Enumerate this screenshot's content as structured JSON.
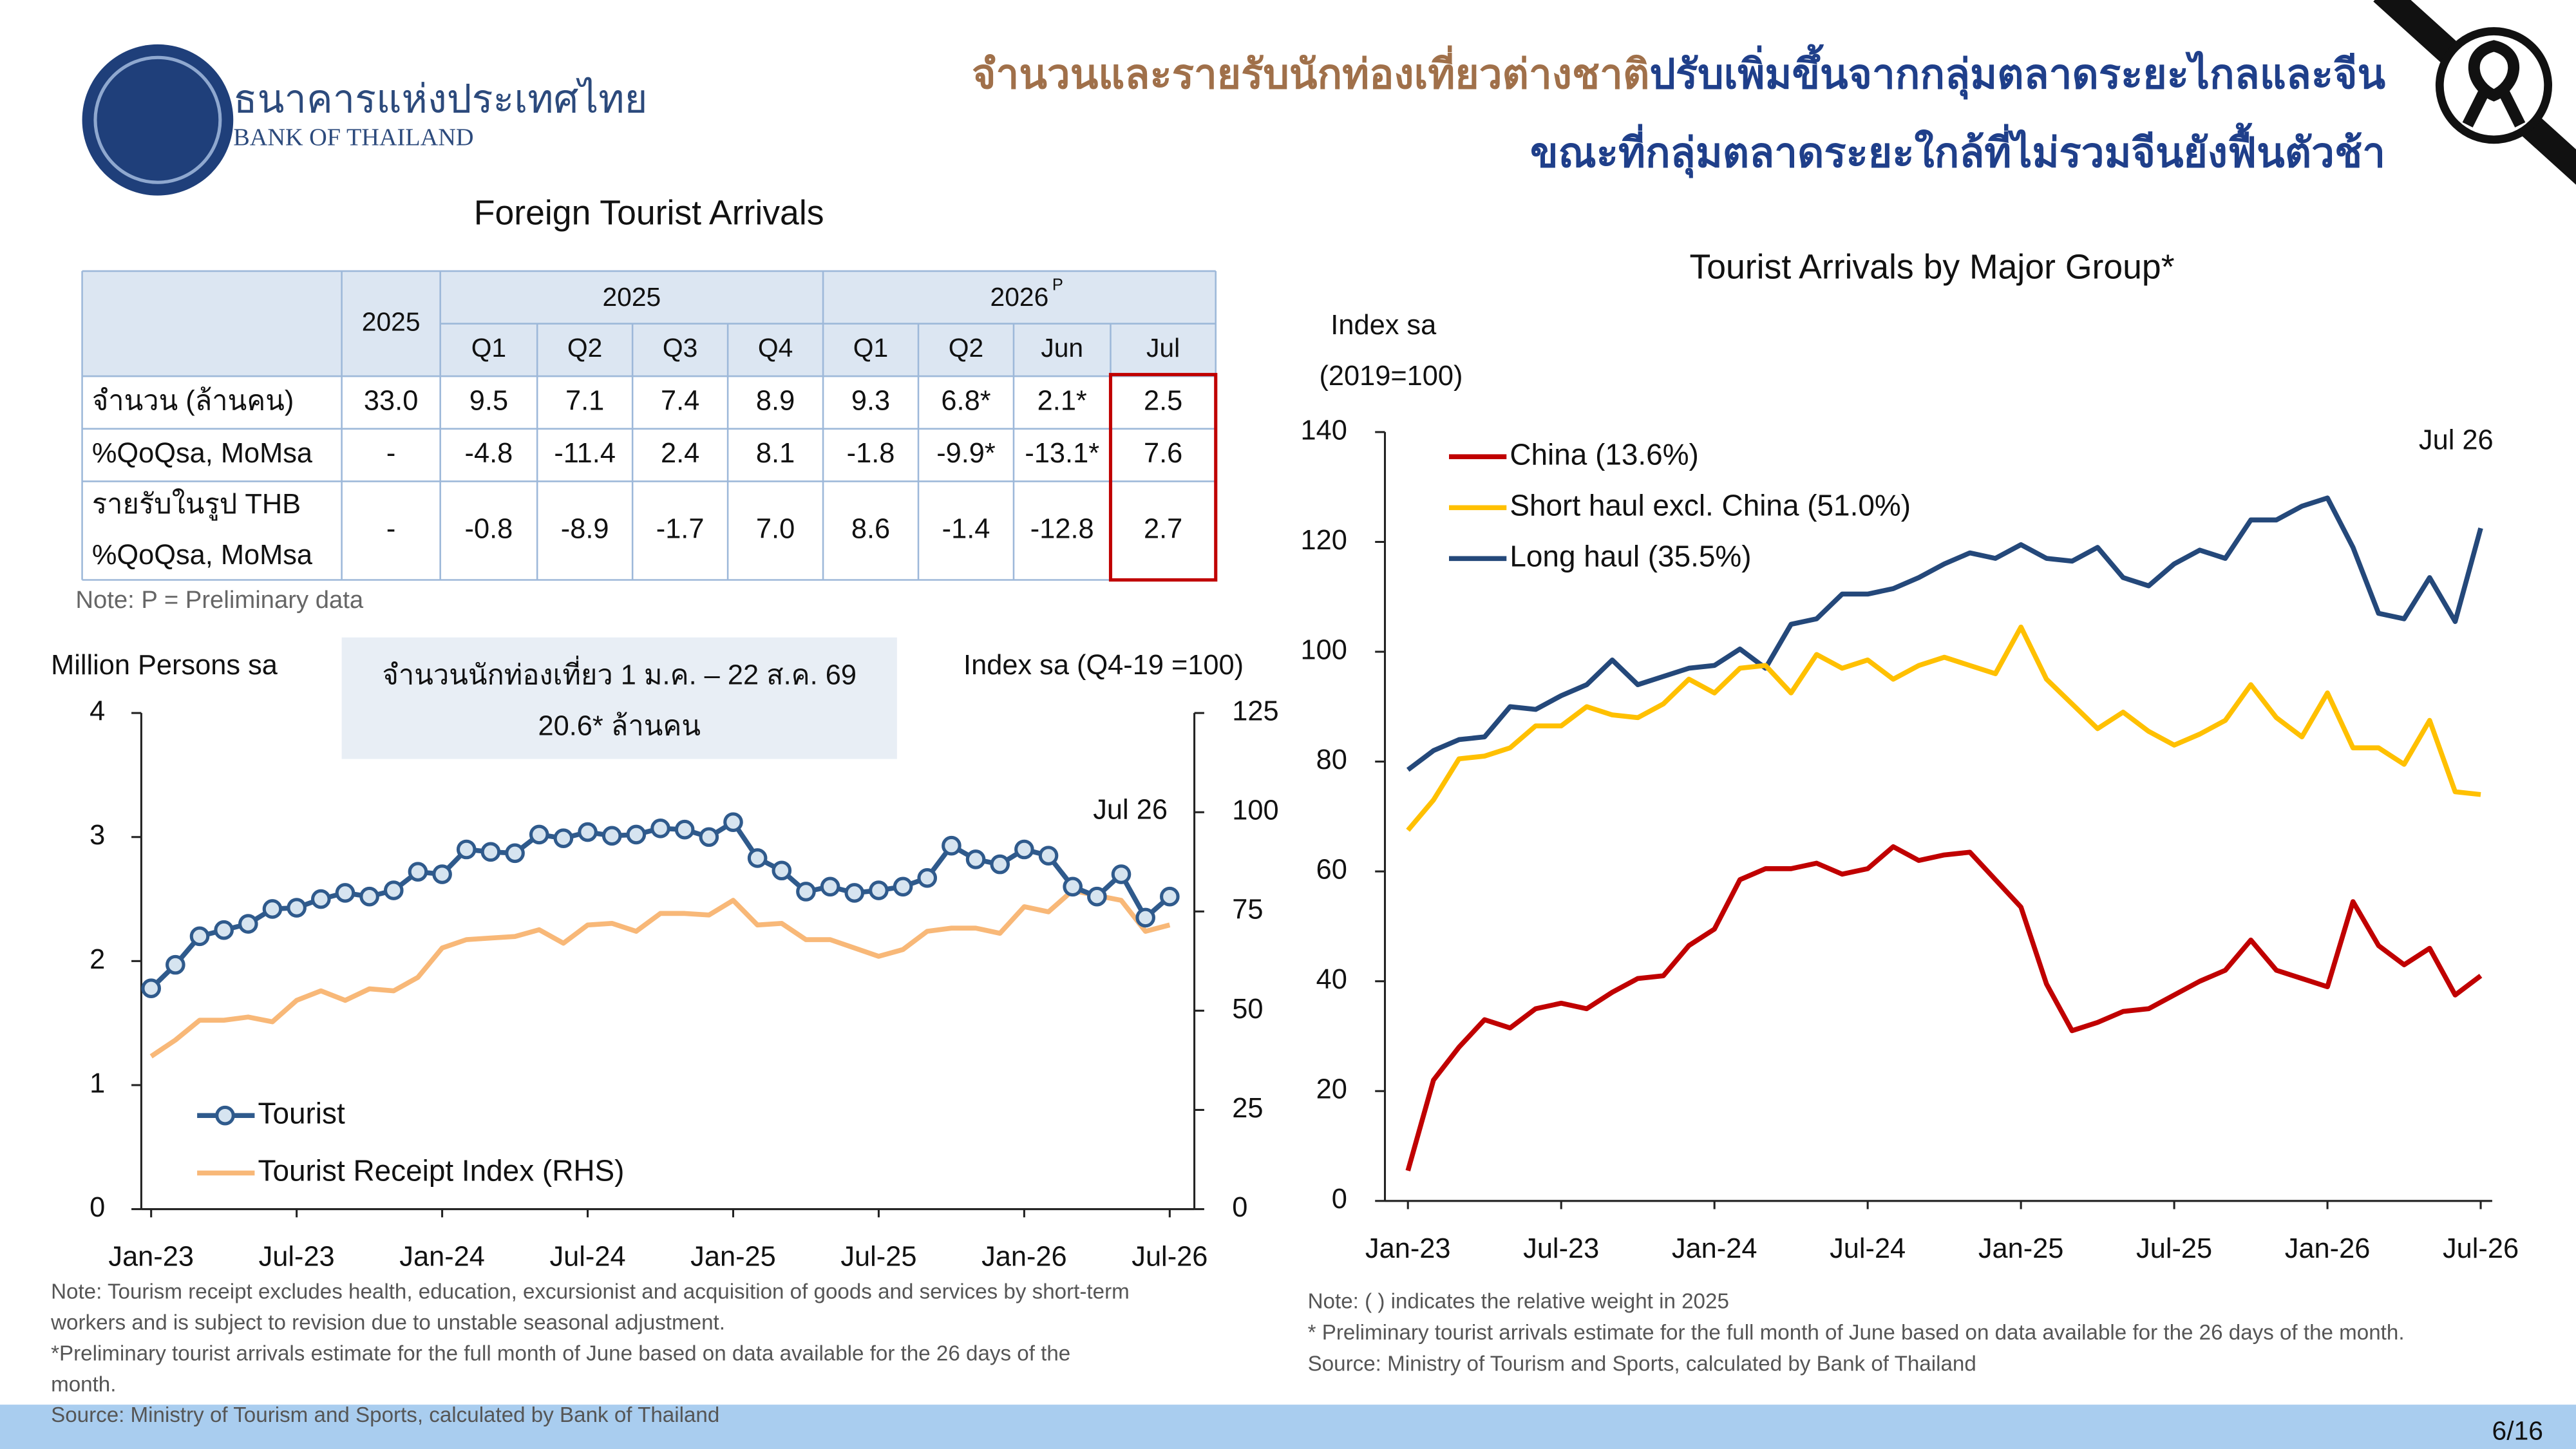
{
  "header": {
    "bank_name": "ธนาคารแห่งประเทศไทย",
    "bank_name_en": "BANK OF THAILAND",
    "title_part1": "จำนวนและรายรับนักท่องเที่ยวต่างชาติ",
    "title_part2": "ปรับเพิ่มขึ้นจากกลุ่มตลาดระยะไกลและจีน",
    "title_line2": "ขณะที่กลุ่มตลาดระยะใกล้ที่ไม่รวมจีนยังฟื้นตัวช้า"
  },
  "table": {
    "title": "Foreign Tourist Arrivals",
    "year_col": "2025",
    "groups": [
      {
        "label": "2025"
      },
      {
        "label": "2026",
        "sup": "P"
      }
    ],
    "columns": [
      "Q1",
      "Q2",
      "Q3",
      "Q4",
      "Q1",
      "Q2",
      "Jun",
      "Jul"
    ],
    "rows": [
      {
        "label": [
          "จำนวน (ล้านคน)"
        ],
        "cells": [
          "33.0",
          "9.5",
          "7.1",
          "7.4",
          "8.9",
          "9.3",
          "6.8*",
          "2.1*",
          "2.5"
        ]
      },
      {
        "label": [
          "%QoQsa, MoMsa"
        ],
        "cells": [
          "-",
          "-4.8",
          "-11.4",
          "2.4",
          "8.1",
          "-1.8",
          "-9.9*",
          "-13.1*",
          "7.6"
        ]
      },
      {
        "label": [
          "รายรับในรูป THB",
          "%QoQsa, MoMsa"
        ],
        "cells": [
          "-",
          "-0.8",
          "-8.9",
          "-1.7",
          "7.0",
          "8.6",
          "-1.4",
          "-12.8",
          "2.7"
        ]
      }
    ],
    "note": "Note: P = Preliminary data"
  },
  "chart_data": [
    {
      "type": "line",
      "y_label_lines": [
        "Million Persons sa"
      ],
      "y2_label": "Index sa (Q4-19 =100)",
      "callout": [
        "จำนวนนักท่องเที่ยว 1 ม.ค. – 22 ส.ค. 69",
        "20.6* ล้านคน"
      ],
      "annotation": "Jul 26",
      "categories": [
        "Jan-23",
        null,
        null,
        null,
        null,
        null,
        "Jul-23",
        null,
        null,
        null,
        null,
        null,
        "Jan-24",
        null,
        null,
        null,
        null,
        null,
        "Jul-24",
        null,
        null,
        null,
        null,
        null,
        "Jan-25",
        null,
        null,
        null,
        null,
        null,
        "Jul-25",
        null,
        null,
        null,
        null,
        null,
        "Jan-26",
        null,
        null,
        null,
        null,
        null,
        "Jul-26"
      ],
      "ylim": [
        0,
        4
      ],
      "yticks": [
        0,
        1,
        2,
        3,
        4
      ],
      "y2lim": [
        0,
        125
      ],
      "y2ticks": [
        0,
        25,
        50,
        75,
        100,
        125
      ],
      "grid": false,
      "series": [
        {
          "name": "Tourist",
          "color": "#2f5a8c",
          "markers": true,
          "values": [
            1.78,
            1.97,
            2.2,
            2.25,
            2.3,
            2.42,
            2.43,
            2.5,
            2.55,
            2.52,
            2.57,
            2.72,
            2.7,
            2.9,
            2.88,
            2.87,
            3.02,
            2.99,
            3.04,
            3.01,
            3.02,
            3.07,
            3.06,
            3.0,
            3.12,
            2.83,
            2.73,
            2.56,
            2.6,
            2.55,
            2.57,
            2.6,
            2.67,
            2.93,
            2.82,
            2.78,
            2.9,
            2.85,
            2.6,
            2.52,
            2.7,
            2.35,
            2.52
          ]
        },
        {
          "name": "Tourist Receipt Index (RHS)",
          "color": "#f8b878",
          "axis": "y2",
          "values": [
            38.5,
            42.6,
            47.6,
            47.6,
            48.4,
            47.2,
            52.6,
            55,
            52.6,
            55.5,
            55,
            58.4,
            65.8,
            67.9,
            68.3,
            68.7,
            70.4,
            67,
            71.6,
            72,
            70,
            74.5,
            74.5,
            74.1,
            77.8,
            71.6,
            72,
            67.9,
            67.9,
            65.8,
            63.7,
            65.4,
            70,
            70.8,
            70.8,
            69.5,
            76.2,
            74.9,
            80.3,
            79,
            77.8,
            70,
            71.6
          ]
        }
      ]
    },
    {
      "type": "line",
      "title": "Tourist Arrivals by Major Group*",
      "y_label_lines": [
        "Index sa",
        "(2019=100)"
      ],
      "annotation": "Jul 26",
      "categories": [
        "Jan-23",
        null,
        null,
        null,
        null,
        null,
        "Jul-23",
        null,
        null,
        null,
        null,
        null,
        "Jan-24",
        null,
        null,
        null,
        null,
        null,
        "Jul-24",
        null,
        null,
        null,
        null,
        null,
        "Jan-25",
        null,
        null,
        null,
        null,
        null,
        "Jul-25",
        null,
        null,
        null,
        null,
        null,
        "Jan-26",
        null,
        null,
        null,
        null,
        null,
        "Jul-26"
      ],
      "ylim": [
        0,
        140
      ],
      "yticks": [
        0,
        20,
        40,
        60,
        80,
        100,
        120,
        140
      ],
      "grid": false,
      "series": [
        {
          "name": "China (13.6%)",
          "color": "#c00000",
          "values": [
            5.5,
            22,
            28,
            33,
            31.5,
            35,
            36,
            35,
            38,
            40.5,
            41,
            46.5,
            49.5,
            58.5,
            60.5,
            60.5,
            61.5,
            59.5,
            60.5,
            64.5,
            62,
            63,
            63.5,
            58.5,
            53.5,
            39.5,
            31,
            32.5,
            34.5,
            35,
            37.5,
            40,
            42,
            47.5,
            42,
            40.5,
            39,
            54.5,
            46.5,
            43,
            46,
            37.5,
            41
          ]
        },
        {
          "name": "Short haul excl. China (51.0%)",
          "color": "#ffc000",
          "values": [
            67.5,
            73,
            80.5,
            81,
            82.5,
            86.5,
            86.5,
            90,
            88.5,
            88,
            90.5,
            95,
            92.5,
            97,
            97.5,
            92.5,
            99.5,
            97,
            98.5,
            95,
            97.5,
            99,
            97.5,
            96,
            104.5,
            95,
            90.5,
            86,
            89,
            85.5,
            83,
            85,
            87.5,
            94,
            88,
            84.5,
            92.5,
            82.5,
            82.5,
            79.5,
            87.5,
            74.5,
            74
          ]
        },
        {
          "name": "Long haul (35.5%)",
          "color": "#24487a",
          "values": [
            78.5,
            82,
            84,
            84.5,
            90,
            89.5,
            92,
            94,
            98.5,
            94,
            95.5,
            97,
            97.5,
            100.5,
            97,
            105,
            106,
            110.5,
            110.5,
            111.5,
            113.5,
            116,
            118,
            117,
            119.5,
            117,
            116.5,
            119,
            113.5,
            112,
            116,
            118.5,
            117,
            124,
            124,
            126.5,
            128,
            119,
            107,
            106,
            113.5,
            105.5,
            122.5
          ]
        }
      ]
    }
  ],
  "notes": {
    "left": [
      "Note: Tourism receipt excludes health, education, excursionist and acquisition of goods and services by short-term",
      "workers and is subject to revision due to unstable seasonal adjustment.",
      "*Preliminary tourist arrivals estimate for the full month of June based on data available for the 26 days of the",
      "month.",
      "Source: Ministry of Tourism and Sports, calculated by Bank of Thailand"
    ],
    "right": [
      "Note: ( ) indicates the relative weight in 2025",
      "* Preliminary tourist arrivals estimate for the full month of June based on data available for the  26 days of the month.",
      "Source: Ministry of Tourism and Sports, calculated by Bank of Thailand"
    ]
  },
  "page_number": "6/16"
}
